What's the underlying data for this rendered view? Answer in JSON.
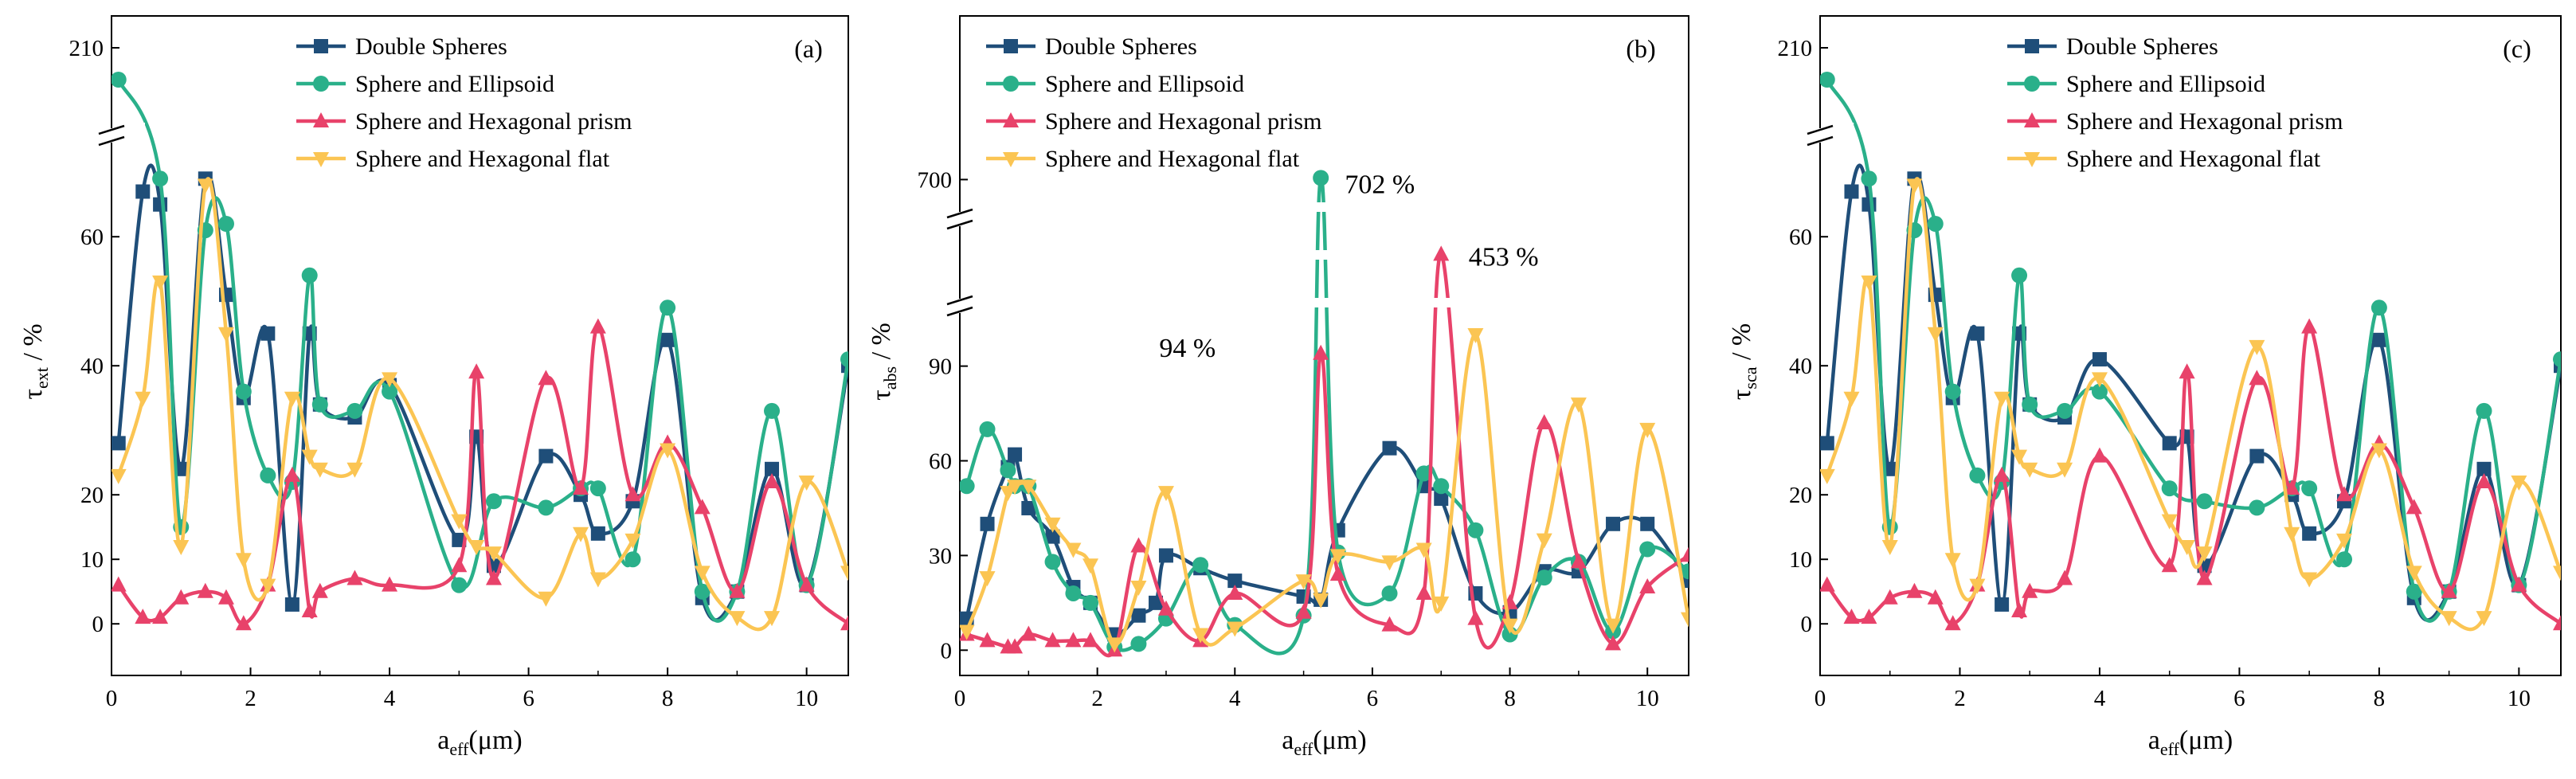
{
  "figure": {
    "legend_labels": [
      "Double Spheres",
      "Sphere and Ellipsoid",
      "Sphere and Hexagonal prism",
      "Sphere and Hexagonal flat"
    ],
    "series_colors": [
      "#1f4e79",
      "#2ab08a",
      "#e8426a",
      "#fbc553"
    ],
    "series_markers": [
      "square",
      "circle",
      "triangle-up",
      "triangle-down"
    ]
  },
  "chart_data": [
    {
      "type": "line",
      "panel_tag": "(a)",
      "title": "",
      "xlabel": "a",
      "xlabel_sub": "eff",
      "xlabel_unit": "(μm)",
      "ylabel": "τ",
      "ylabel_sub": "ext",
      "ylabel_unit": " / %",
      "xlim": [
        0,
        10.6
      ],
      "ylim": [
        -8,
        215
      ],
      "y_break": [
        72,
        200
      ],
      "xticks": [
        0,
        2,
        4,
        6,
        8,
        10
      ],
      "xtick_labels": [
        "0",
        "2",
        "4",
        "6",
        "8",
        "10"
      ],
      "yticks": [
        0,
        10,
        20,
        40,
        60,
        210
      ],
      "ytick_labels": [
        "0",
        "10",
        "20",
        "40",
        "60",
        "210"
      ],
      "annotations": [],
      "series": [
        {
          "name": "Double Spheres",
          "x": [
            0.1,
            0.45,
            0.7,
            1.0,
            1.35,
            1.65,
            1.9,
            2.25,
            2.6,
            2.85,
            3.0,
            3.5,
            4.0,
            5.0,
            5.25,
            5.5,
            6.25,
            6.75,
            7.0,
            7.5,
            8.0,
            8.5,
            9.0,
            9.5,
            10.0,
            10.6
          ],
          "y": [
            28,
            67,
            65,
            24,
            69,
            51,
            35,
            45,
            3,
            45,
            34,
            32,
            37,
            13,
            29,
            9,
            26,
            20,
            14,
            19,
            44,
            4,
            5,
            24,
            6,
            40
          ]
        },
        {
          "name": "Sphere and Ellipsoid",
          "x": [
            0.1,
            0.7,
            1.0,
            1.35,
            1.65,
            1.9,
            2.25,
            2.6,
            2.85,
            3.0,
            3.5,
            4.0,
            5.0,
            5.5,
            6.25,
            6.75,
            7.0,
            7.5,
            8.0,
            8.5,
            9.0,
            9.5,
            10.0,
            10.6
          ],
          "y": [
            205,
            69,
            15,
            61,
            62,
            36,
            23,
            22,
            54,
            34,
            33,
            36,
            6,
            19,
            18,
            21,
            21,
            10,
            49,
            5,
            5,
            33,
            6,
            41
          ]
        },
        {
          "name": "Sphere and Hexagonal prism",
          "x": [
            0.1,
            0.45,
            0.7,
            1.0,
            1.35,
            1.65,
            1.9,
            2.25,
            2.6,
            2.85,
            3.0,
            3.5,
            4.0,
            5.0,
            5.25,
            5.5,
            6.25,
            6.75,
            7.0,
            7.5,
            8.0,
            8.5,
            9.0,
            9.5,
            10.0,
            10.6
          ],
          "y": [
            6,
            1,
            1,
            4,
            5,
            4,
            0,
            6,
            23,
            2,
            5,
            7,
            6,
            9,
            39,
            7,
            38,
            21,
            46,
            20,
            28,
            18,
            5,
            22,
            6,
            0
          ]
        },
        {
          "name": "Sphere and Hexagonal flat",
          "x": [
            0.1,
            0.45,
            0.7,
            1.0,
            1.35,
            1.65,
            1.9,
            2.25,
            2.6,
            2.85,
            3.0,
            3.5,
            4.0,
            5.0,
            5.25,
            5.5,
            6.25,
            6.75,
            7.0,
            7.5,
            8.0,
            8.5,
            9.0,
            9.5,
            10.0,
            10.6
          ],
          "y": [
            23,
            35,
            53,
            12,
            68,
            45,
            10,
            6,
            35,
            26,
            24,
            24,
            38,
            16,
            12,
            11,
            4,
            14,
            7,
            13,
            27,
            8,
            1,
            1,
            22,
            8
          ]
        }
      ]
    },
    {
      "type": "line",
      "panel_tag": "(b)",
      "title": "",
      "xlabel": "a",
      "xlabel_sub": "eff",
      "xlabel_unit": "(μm)",
      "ylabel": "τ",
      "ylabel_sub": "abs",
      "ylabel_unit": " / %",
      "xlim": [
        0,
        10.6
      ],
      "ylim": [
        -8,
        715
      ],
      "y_breaks": [
        [
          100,
          440
        ],
        [
          460,
          680
        ]
      ],
      "xticks": [
        0,
        2,
        4,
        6,
        8,
        10
      ],
      "xtick_labels": [
        "0",
        "2",
        "4",
        "6",
        "8",
        "10"
      ],
      "yticks": [
        0,
        30,
        60,
        90,
        700
      ],
      "ytick_labels": [
        "0",
        "30",
        "60",
        "90",
        "700"
      ],
      "annotations": [
        {
          "text": "702 %",
          "x": 5.6,
          "y": 695
        },
        {
          "text": "453 %",
          "x": 7.4,
          "y": 452
        },
        {
          "text": "94 %",
          "x": 2.9,
          "y": 96
        }
      ],
      "series": [
        {
          "name": "Double Spheres",
          "x": [
            0.1,
            0.4,
            0.7,
            0.8,
            1.0,
            1.35,
            1.65,
            1.9,
            2.25,
            2.6,
            2.85,
            3.0,
            3.5,
            4.0,
            5.0,
            5.25,
            5.5,
            6.25,
            6.75,
            7.0,
            7.5,
            8.0,
            8.5,
            9.0,
            9.5,
            10.0,
            10.6
          ],
          "y": [
            10,
            40,
            58,
            62,
            45,
            36,
            20,
            15,
            5,
            11,
            15,
            30,
            26,
            22,
            17,
            16,
            38,
            64,
            52,
            48,
            18,
            12,
            25,
            25,
            40,
            40,
            22
          ]
        },
        {
          "name": "Sphere and Ellipsoid",
          "x": [
            0.1,
            0.4,
            0.7,
            0.8,
            1.0,
            1.35,
            1.65,
            1.9,
            2.25,
            2.6,
            3.0,
            3.5,
            4.0,
            5.0,
            5.25,
            5.5,
            6.25,
            6.75,
            7.0,
            7.5,
            8.0,
            8.5,
            9.0,
            9.5,
            10.0,
            10.6
          ],
          "y": [
            52,
            70,
            57,
            52,
            52,
            28,
            18,
            15,
            1,
            2,
            10,
            27,
            8,
            11,
            702,
            31,
            18,
            56,
            52,
            38,
            5,
            23,
            28,
            6,
            32,
            25
          ]
        },
        {
          "name": "Sphere and Hexagonal prism",
          "x": [
            0.1,
            0.4,
            0.7,
            0.8,
            1.0,
            1.35,
            1.65,
            1.9,
            2.25,
            2.6,
            3.0,
            3.5,
            4.0,
            5.0,
            5.25,
            5.5,
            6.25,
            6.75,
            7.0,
            7.5,
            8.0,
            8.5,
            9.0,
            9.5,
            10.0,
            10.6
          ],
          "y": [
            5,
            3,
            1,
            1,
            5,
            3,
            3,
            3,
            0,
            33,
            13,
            3,
            18,
            12,
            94,
            24,
            8,
            18,
            453,
            10,
            15,
            72,
            28,
            2,
            20,
            30
          ]
        },
        {
          "name": "Sphere and Hexagonal flat",
          "x": [
            0.1,
            0.4,
            0.7,
            0.8,
            1.0,
            1.35,
            1.65,
            1.9,
            2.25,
            2.6,
            3.0,
            3.5,
            4.0,
            5.0,
            5.25,
            5.5,
            6.25,
            6.75,
            7.0,
            7.5,
            8.0,
            8.5,
            9.0,
            9.5,
            10.0,
            10.6
          ],
          "y": [
            6,
            23,
            50,
            52,
            52,
            40,
            32,
            27,
            2,
            20,
            50,
            5,
            7,
            22,
            16,
            30,
            28,
            32,
            15,
            100,
            8,
            35,
            78,
            8,
            70,
            10
          ]
        }
      ]
    },
    {
      "type": "line",
      "panel_tag": "(c)",
      "title": "",
      "xlabel": "a",
      "xlabel_sub": "eff",
      "xlabel_unit": "(μm)",
      "ylabel": "τ",
      "ylabel_sub": "sca",
      "ylabel_unit": " / %",
      "xlim": [
        0,
        10.6
      ],
      "ylim": [
        -8,
        215
      ],
      "y_break": [
        72,
        200
      ],
      "xticks": [
        0,
        2,
        4,
        6,
        8,
        10
      ],
      "xtick_labels": [
        "0",
        "2",
        "4",
        "6",
        "8",
        "10"
      ],
      "yticks": [
        0,
        10,
        20,
        40,
        60,
        210
      ],
      "ytick_labels": [
        "0",
        "10",
        "20",
        "40",
        "60",
        "210"
      ],
      "annotations": [],
      "series": [
        {
          "name": "Double Spheres",
          "x": [
            0.1,
            0.45,
            0.7,
            1.0,
            1.35,
            1.65,
            1.9,
            2.25,
            2.6,
            2.85,
            3.0,
            3.5,
            4.0,
            5.0,
            5.25,
            5.5,
            6.25,
            6.75,
            7.0,
            7.5,
            8.0,
            8.5,
            9.0,
            9.5,
            10.0,
            10.6
          ],
          "y": [
            28,
            67,
            65,
            24,
            69,
            51,
            35,
            45,
            3,
            45,
            34,
            32,
            41,
            28,
            29,
            9,
            26,
            20,
            14,
            19,
            44,
            4,
            5,
            24,
            6,
            40
          ]
        },
        {
          "name": "Sphere and Ellipsoid",
          "x": [
            0.1,
            0.7,
            1.0,
            1.35,
            1.65,
            1.9,
            2.25,
            2.6,
            2.85,
            3.0,
            3.5,
            4.0,
            5.0,
            5.5,
            6.25,
            6.75,
            7.0,
            7.5,
            8.0,
            8.5,
            9.0,
            9.5,
            10.0,
            10.6
          ],
          "y": [
            205,
            69,
            15,
            61,
            62,
            36,
            23,
            22,
            54,
            34,
            33,
            36,
            21,
            19,
            18,
            21,
            21,
            10,
            49,
            5,
            5,
            33,
            6,
            41
          ]
        },
        {
          "name": "Sphere and Hexagonal prism",
          "x": [
            0.1,
            0.45,
            0.7,
            1.0,
            1.35,
            1.65,
            1.9,
            2.25,
            2.6,
            2.85,
            3.0,
            3.5,
            4.0,
            5.0,
            5.25,
            5.5,
            6.25,
            6.75,
            7.0,
            7.5,
            8.0,
            8.5,
            9.0,
            9.5,
            10.0,
            10.6
          ],
          "y": [
            6,
            1,
            1,
            4,
            5,
            4,
            0,
            6,
            23,
            2,
            5,
            7,
            26,
            9,
            39,
            7,
            38,
            21,
            46,
            20,
            28,
            18,
            5,
            22,
            6,
            0
          ]
        },
        {
          "name": "Sphere and Hexagonal flat",
          "x": [
            0.1,
            0.45,
            0.7,
            1.0,
            1.35,
            1.65,
            1.9,
            2.25,
            2.6,
            2.85,
            3.0,
            3.5,
            4.0,
            5.0,
            5.25,
            5.5,
            6.25,
            6.75,
            7.0,
            7.5,
            8.0,
            8.5,
            9.0,
            9.5,
            10.0,
            10.6
          ],
          "y": [
            23,
            35,
            53,
            12,
            68,
            45,
            10,
            6,
            35,
            26,
            24,
            24,
            38,
            16,
            12,
            11,
            43,
            14,
            7,
            13,
            27,
            8,
            1,
            1,
            22,
            8
          ]
        }
      ]
    }
  ]
}
